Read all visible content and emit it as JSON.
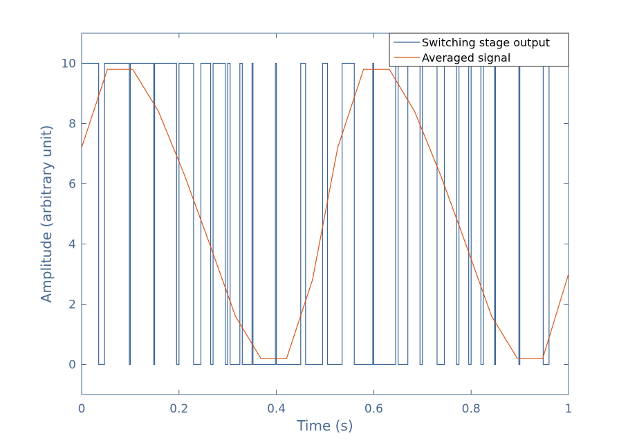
{
  "chart_data": {
    "type": "line",
    "title": "",
    "xlabel": "Time (s)",
    "ylabel": "Amplitude (arbitrary unit)",
    "xlim": [
      0,
      1
    ],
    "ylim": [
      -1,
      11
    ],
    "xticks": [
      0,
      0.2,
      0.4,
      0.6,
      0.8,
      1
    ],
    "xtick_labels": [
      "0",
      "0.2",
      "0.4",
      "0.6",
      "0.8",
      "1"
    ],
    "yticks": [
      0,
      2,
      4,
      6,
      8,
      10
    ],
    "ytick_labels": [
      "0",
      "2",
      "4",
      "6",
      "8",
      "10"
    ],
    "grid": false,
    "legend_position": "top-right",
    "series": [
      {
        "name": "Switching stage output",
        "color": "#3b6596",
        "x": [
          0,
          0.035,
          0.035,
          0.047,
          0.047,
          0.098,
          0.098,
          0.1,
          0.1,
          0.148,
          0.148,
          0.15,
          0.15,
          0.15,
          0.15,
          0.15,
          0.15,
          0.195,
          0.195,
          0.2,
          0.2,
          0.23,
          0.23,
          0.245,
          0.245,
          0.265,
          0.265,
          0.27,
          0.27,
          0.295,
          0.295,
          0.3,
          0.3,
          0.305,
          0.305,
          0.325,
          0.325,
          0.33,
          0.33,
          0.35,
          0.35,
          0.352,
          0.352,
          0.398,
          0.398,
          0.4,
          0.4,
          0.45,
          0.45,
          0.46,
          0.46,
          0.495,
          0.495,
          0.505,
          0.505,
          0.535,
          0.535,
          0.56,
          0.56,
          0.598,
          0.598,
          0.6,
          0.6,
          0.645,
          0.645,
          0.65,
          0.65,
          0.67,
          0.67,
          0.695,
          0.695,
          0.7,
          0.7,
          0.73,
          0.73,
          0.745,
          0.745,
          0.77,
          0.77,
          0.775,
          0.775,
          0.795,
          0.795,
          0.8,
          0.8,
          0.82,
          0.82,
          0.825,
          0.825,
          0.848,
          0.848,
          0.85,
          0.85,
          0.898,
          0.898,
          0.9,
          0.9,
          0.948,
          0.948,
          0.96,
          0.96,
          1
        ],
        "y": [
          10,
          10,
          0,
          0,
          10,
          10,
          0,
          0,
          10,
          10,
          0,
          0,
          10,
          10,
          10,
          10,
          10,
          10,
          0,
          0,
          10,
          10,
          0,
          0,
          10,
          10,
          0,
          0,
          10,
          10,
          0,
          0,
          10,
          10,
          0,
          0,
          10,
          10,
          0,
          0,
          10,
          10,
          0,
          0,
          10,
          10,
          0,
          0,
          10,
          10,
          0,
          0,
          10,
          10,
          0,
          0,
          10,
          10,
          0,
          0,
          10,
          10,
          0,
          0,
          10,
          10,
          0,
          0,
          10,
          10,
          0,
          0,
          10,
          10,
          0,
          0,
          10,
          10,
          0,
          0,
          10,
          10,
          0,
          0,
          10,
          10,
          0,
          0,
          10,
          10,
          0,
          0,
          10,
          10,
          0,
          0,
          10,
          10,
          0,
          0,
          10,
          10
        ]
      },
      {
        "name": "Averaged signal",
        "color": "#d95319",
        "x": [
          0,
          0.053,
          0.105,
          0.158,
          0.211,
          0.263,
          0.316,
          0.368,
          0.421,
          0.474,
          0.526,
          0.579,
          0.632,
          0.684,
          0.737,
          0.789,
          0.842,
          0.895,
          0.947,
          1
        ],
        "y": [
          7.2,
          9.8,
          9.8,
          8.4,
          6.3,
          4.0,
          1.6,
          0.2,
          0.2,
          2.8,
          7.2,
          9.8,
          9.8,
          8.4,
          6.3,
          4.0,
          1.6,
          0.2,
          0.2,
          3.0
        ]
      }
    ]
  }
}
